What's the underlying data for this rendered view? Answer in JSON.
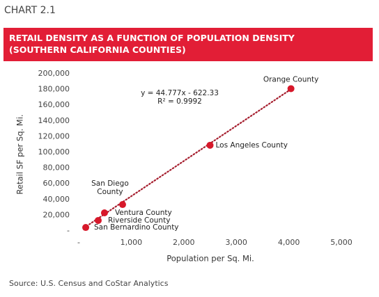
{
  "chart_label": "CHART 2.1",
  "source": "Source: U.S. Census and CoStar Analytics",
  "chart_data": {
    "type": "scatter",
    "title": "RETAIL DENSITY AS A FUNCTION OF POPULATION DENSITY (SOUTHERN CALIFORNIA COUNTIES)",
    "x_label": "Population per Sq. Mi.",
    "y_label": "Retail SF per Sq. Mi.",
    "labels": [
      "Orange County",
      "Los Angeles County",
      "San Diego County",
      "Ventura County",
      "Riverside County",
      "San Bernardino County"
    ],
    "x": [
      4040,
      2500,
      835,
      490,
      371,
      133
    ],
    "values": [
      181000,
      109000,
      33600,
      23000,
      13300,
      4400
    ],
    "color": "#d7182a",
    "trendline": {
      "slope": 44.777,
      "intercept": -622.33,
      "label": "y = 44.777x - 622.33",
      "r2_label": "R² = 0.9992",
      "color": "#a51d2d"
    },
    "xlim": [
      0,
      5000
    ],
    "xticks": [
      {
        "value": 0,
        "label": "-"
      },
      {
        "value": 1000,
        "label": "1,000"
      },
      {
        "value": 2000,
        "label": "2,000"
      },
      {
        "value": 3000,
        "label": "3,000"
      },
      {
        "value": 4000,
        "label": "4,000"
      },
      {
        "value": 5000,
        "label": "5,000"
      }
    ],
    "ylim": [
      0,
      200000
    ],
    "yticks": [
      {
        "value": 0,
        "label": "-"
      },
      {
        "value": 20000,
        "label": "20,000"
      },
      {
        "value": 40000,
        "label": "40,000"
      },
      {
        "value": 60000,
        "label": "60,000"
      },
      {
        "value": 80000,
        "label": "80,000"
      },
      {
        "value": 100000,
        "label": "100,000"
      },
      {
        "value": 120000,
        "label": "120,000"
      },
      {
        "value": 140000,
        "label": "140,000"
      },
      {
        "value": 160000,
        "label": "160,000"
      },
      {
        "value": 180000,
        "label": "180,000"
      },
      {
        "value": 200000,
        "label": "200,000"
      }
    ],
    "banner_color": "#e21e36"
  }
}
